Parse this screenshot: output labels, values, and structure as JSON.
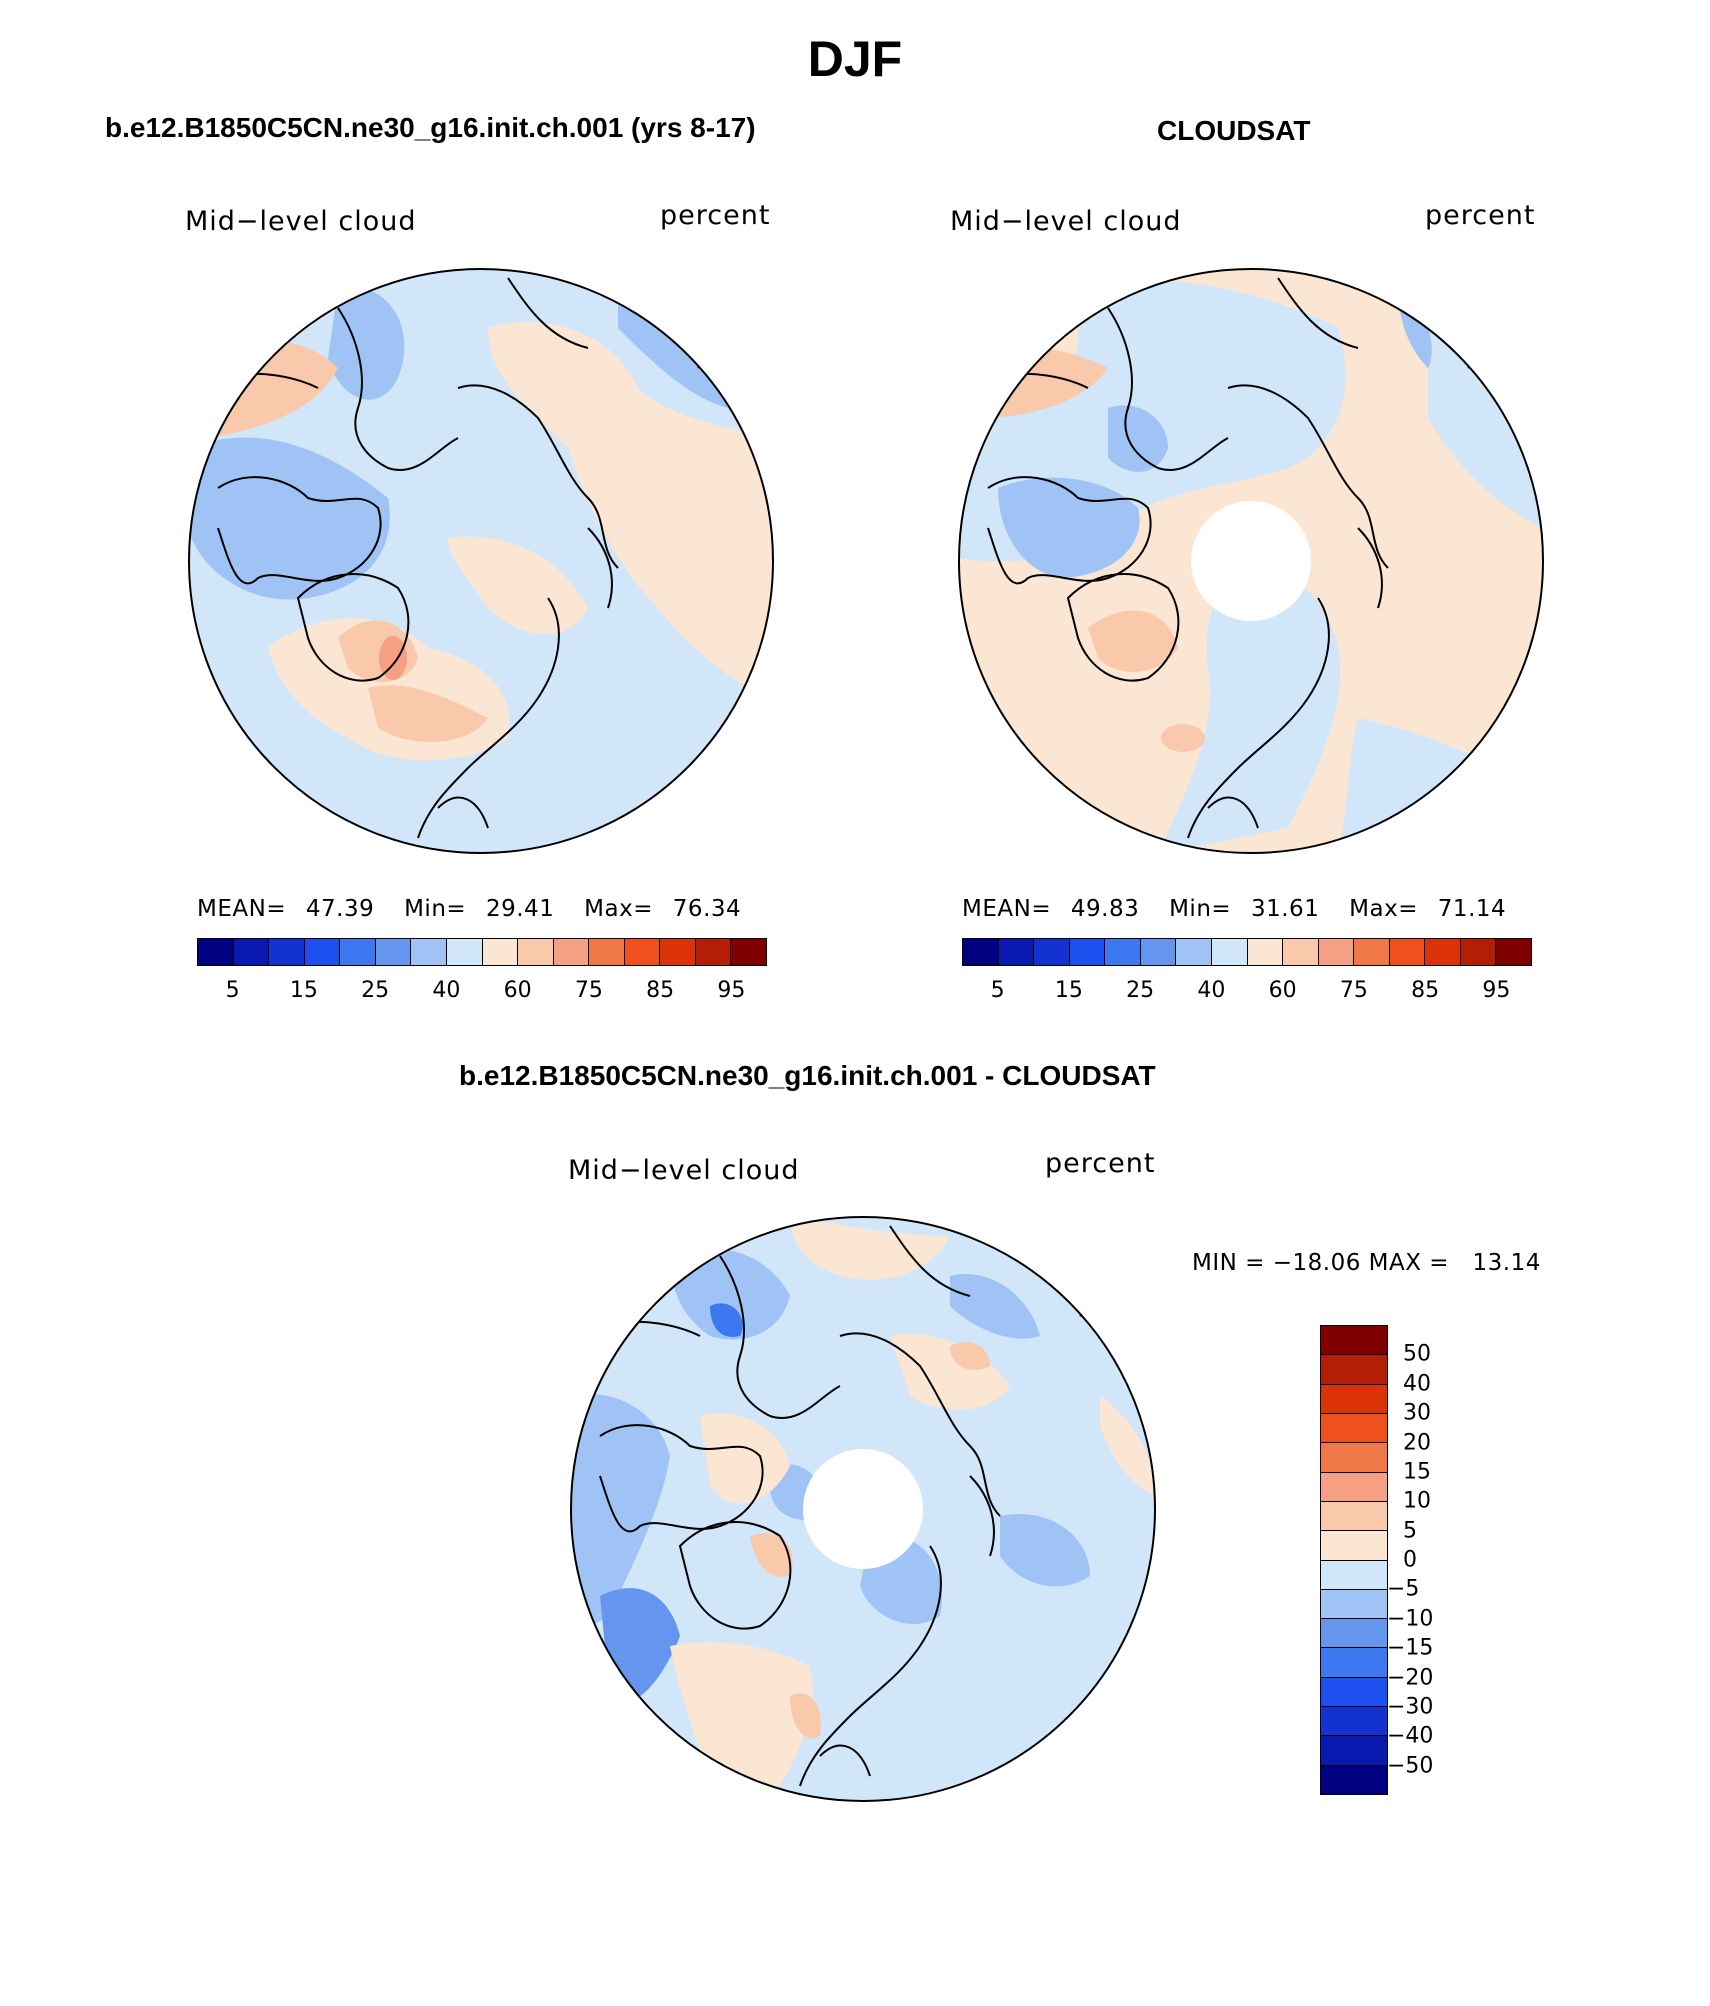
{
  "title": "DJF",
  "panels": [
    {
      "title": "b.e12.B1850C5CN.ne30_g16.init.ch.001 (yrs 8-17)",
      "left_label": "Mid−level cloud",
      "right_label": "percent",
      "stats": {
        "mean_label": "MEAN=",
        "mean": "47.39",
        "min_label": "Min=",
        "min": "29.41",
        "max_label": "Max=",
        "max": "76.34"
      }
    },
    {
      "title": "CLOUDSAT",
      "left_label": "Mid−level cloud",
      "right_label": "percent",
      "stats": {
        "mean_label": "MEAN=",
        "mean": "49.83",
        "min_label": "Min=",
        "min": "31.61",
        "max_label": "Max=",
        "max": "71.14"
      }
    },
    {
      "title": "b.e12.B1850C5CN.ne30_g16.init.ch.001 - CLOUDSAT",
      "left_label": "Mid−level cloud",
      "right_label": "percent",
      "minmax_text": "MIN = −18.06 MAX =   13.14"
    }
  ],
  "colorbar_abs": {
    "colors": [
      "#000080",
      "#0a1ab0",
      "#1432d2",
      "#1e50f0",
      "#3c78f0",
      "#6496f0",
      "#a0c3f5",
      "#d2e6fa",
      "#fae6d2",
      "#fac8aa",
      "#f5a082",
      "#f07846",
      "#f0501e",
      "#dc320a",
      "#b41e05",
      "#800000"
    ],
    "tick_labels": [
      "5",
      "15",
      "25",
      "40",
      "60",
      "75",
      "85",
      "95"
    ]
  },
  "colorbar_diff": {
    "colors": [
      "#800000",
      "#b41e05",
      "#dc320a",
      "#f0501e",
      "#f07846",
      "#f5a082",
      "#fac8aa",
      "#fae6d2",
      "#d2e6fa",
      "#a0c3f5",
      "#6496f0",
      "#3c78f0",
      "#1e50f0",
      "#1432d2",
      "#0a1ab0",
      "#000080"
    ],
    "tick_labels": [
      "50",
      "40",
      "30",
      "20",
      "15",
      "10",
      "5",
      "0",
      "−5",
      "−10",
      "−15",
      "−20",
      "−30",
      "−40",
      "−50"
    ]
  },
  "chart_data": [
    {
      "type": "heatmap",
      "title": "b.e12.B1850C5CN.ne30_g16.init.ch.001 (yrs 8-17)",
      "variable": "Mid−level cloud",
      "units": "percent",
      "projection": "north polar stereographic",
      "mean": 47.39,
      "min": 29.41,
      "max": 76.34,
      "contour_levels": [
        5,
        10,
        15,
        20,
        25,
        30,
        40,
        50,
        60,
        70,
        75,
        80,
        85,
        90,
        95
      ]
    },
    {
      "type": "heatmap",
      "title": "CLOUDSAT",
      "variable": "Mid−level cloud",
      "units": "percent",
      "projection": "north polar stereographic",
      "mean": 49.83,
      "min": 31.61,
      "max": 71.14,
      "contour_levels": [
        5,
        10,
        15,
        20,
        25,
        30,
        40,
        50,
        60,
        70,
        75,
        80,
        85,
        90,
        95
      ]
    },
    {
      "type": "heatmap",
      "title": "b.e12.B1850C5CN.ne30_g16.init.ch.001 - CLOUDSAT",
      "variable": "Mid−level cloud",
      "units": "percent",
      "projection": "north polar stereographic",
      "min": -18.06,
      "max": 13.14,
      "contour_levels": [
        -50,
        -40,
        -30,
        -20,
        -15,
        -10,
        -5,
        0,
        5,
        10,
        15,
        20,
        30,
        40,
        50
      ]
    }
  ]
}
